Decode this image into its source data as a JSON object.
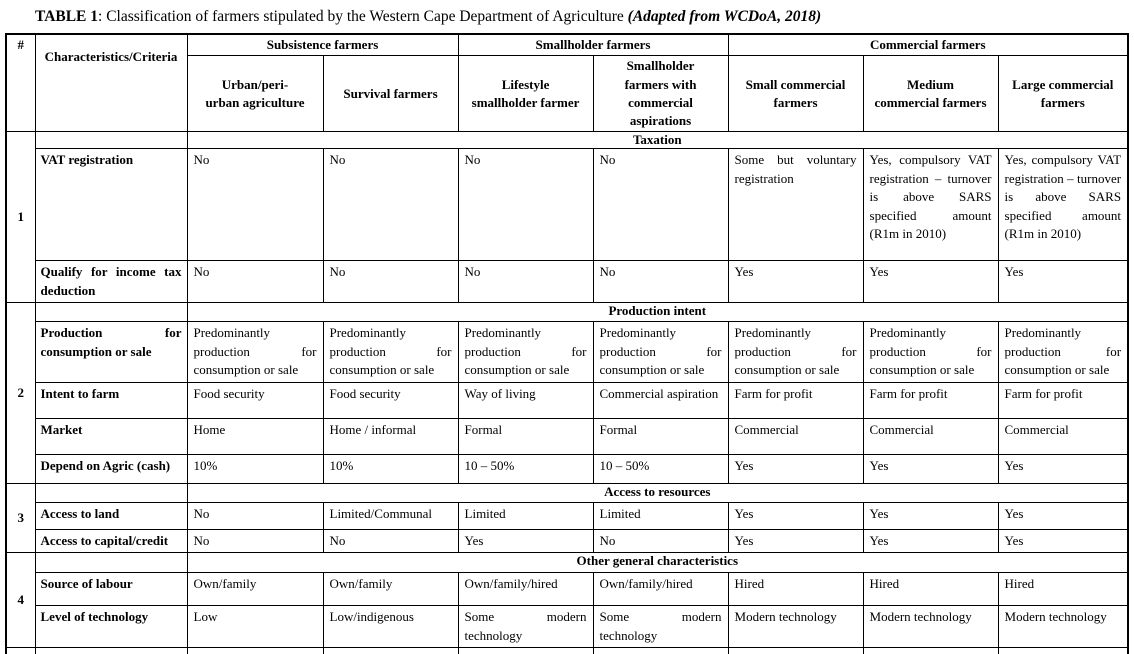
{
  "title": {
    "label": "TABLE 1",
    "rest": ": Classification of farmers stipulated by the Western Cape Department of Agriculture ",
    "source": "(Adapted from WCDoA, 2018)"
  },
  "table": {
    "corner_hash": "#",
    "criteria_header": "Characteristics/Criteria",
    "groups": [
      {
        "label": "Subsistence farmers",
        "span": 2
      },
      {
        "label": "Smallholder farmers",
        "span": 2
      },
      {
        "label": "Commercial farmers",
        "span": 3
      }
    ],
    "columns": [
      "Urban/peri-\nurban agriculture",
      "Survival farmers",
      "Lifestyle\nsmallholder farmer",
      "Smallholder\nfarmers with\ncommercial\naspirations",
      "Small commercial\nfarmers",
      "Medium\ncommercial farmers",
      "Large commercial\nfarmers"
    ],
    "sections": [
      {
        "number": "1",
        "banner": "Taxation",
        "rows": [
          {
            "label": "VAT registration",
            "values": [
              "No",
              "No",
              "No",
              "No",
              "Some but voluntary registration",
              "Yes, compulsory VAT registration – turnover is above SARS specified amount (R1m in 2010)",
              "Yes, compulsory VAT registration – turnover is above SARS specified amount (R1m in 2010)"
            ]
          },
          {
            "label": "Qualify for income tax deduction",
            "values": [
              "No",
              "No",
              "No",
              "No",
              "Yes",
              "Yes",
              "Yes"
            ]
          }
        ]
      },
      {
        "number": "2",
        "banner": "Production intent",
        "rows": [
          {
            "label": "Production for consumption or sale",
            "values": [
              "Predominantly production for consumption or sale",
              "Predominantly production for consumption or sale",
              "Predominantly production for consumption or sale",
              "Predominantly production for consumption or sale",
              "Predominantly production for consumption or sale",
              "Predominantly production for consumption or sale",
              "Predominantly production for consumption or sale"
            ]
          },
          {
            "label": "Intent to farm",
            "values": [
              "Food security",
              "Food security",
              "Way of living",
              "Commercial aspiration",
              "Farm for profit",
              "Farm for profit",
              "Farm for profit"
            ]
          },
          {
            "label": "Market",
            "values": [
              "Home",
              "Home / informal",
              "Formal",
              "Formal",
              "Commercial",
              "Commercial",
              "Commercial"
            ]
          },
          {
            "label": "Depend on Agric (cash)",
            "values": [
              "10%",
              "10%",
              "10 – 50%",
              "10 – 50%",
              "Yes",
              "Yes",
              "Yes"
            ]
          }
        ]
      },
      {
        "number": "3",
        "banner": "Access to resources",
        "rows": [
          {
            "label": "Access to land",
            "values": [
              "No",
              "Limited/Communal",
              "Limited",
              "Limited",
              "Yes",
              "Yes",
              "Yes"
            ]
          },
          {
            "label": "Access to capital/credit",
            "values": [
              "No",
              "No",
              "Yes",
              "No",
              "Yes",
              "Yes",
              "Yes"
            ]
          }
        ]
      },
      {
        "number": "4",
        "banner": "Other general characteristics",
        "rows": [
          {
            "label": "Source of labour",
            "values": [
              "Own/family",
              "Own/family",
              "Own/family/hired",
              "Own/family/hired",
              "Hired",
              "Hired",
              "Hired"
            ]
          },
          {
            "label": "Level of technology",
            "values": [
              "Low",
              "Low/indigenous",
              "Some modern technology",
              "Some modern technology",
              "Modern technology",
              "Modern technology",
              "Modern technology"
            ]
          }
        ]
      }
    ]
  }
}
